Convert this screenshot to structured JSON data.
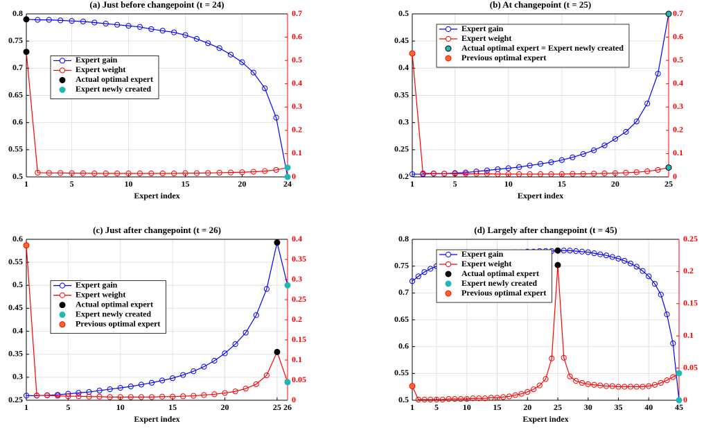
{
  "chart_data": [
    {
      "type": "line",
      "title": "(a) Just before changepoint (t = 24)",
      "xlabel": "Expert index",
      "grid": true,
      "legend": "center left",
      "x": [
        1,
        2,
        3,
        4,
        5,
        6,
        7,
        8,
        9,
        10,
        11,
        12,
        13,
        14,
        15,
        16,
        17,
        18,
        19,
        20,
        21,
        22,
        23,
        24
      ],
      "xlim": [
        1,
        24
      ],
      "xticks": [
        1,
        5,
        10,
        15,
        20,
        24
      ],
      "ylim": [
        0.5,
        0.8
      ],
      "yticks": [
        0.5,
        0.55,
        0.6,
        0.65,
        0.7,
        0.75,
        0.8
      ],
      "y2lim": [
        0,
        0.7
      ],
      "y2ticks": [
        0,
        0.1,
        0.2,
        0.3,
        0.4,
        0.5,
        0.6,
        0.7
      ],
      "series": [
        {
          "name": "Expert gain",
          "color": "#0000ff",
          "values": [
            0.79,
            0.789,
            0.789,
            0.788,
            0.787,
            0.786,
            0.784,
            0.782,
            0.78,
            0.778,
            0.776,
            0.772,
            0.769,
            0.766,
            0.761,
            0.754,
            0.746,
            0.737,
            0.725,
            0.711,
            0.692,
            0.663,
            0.609,
            0.5
          ]
        },
        {
          "name": "Expert weight",
          "color": "#ff0000",
          "axis": "y2",
          "values": [
            0.537,
            0.018,
            0.017,
            0.017,
            0.016,
            0.016,
            0.015,
            0.015,
            0.015,
            0.015,
            0.015,
            0.015,
            0.015,
            0.015,
            0.016,
            0.016,
            0.017,
            0.018,
            0.019,
            0.02,
            0.022,
            0.025,
            0.03,
            0.04
          ]
        }
      ],
      "markers": [
        {
          "name": "Actual optimal expert",
          "color": "#000000",
          "x": [
            1,
            1
          ],
          "values": [
            0.79,
            0.537
          ],
          "axes": [
            "y",
            "y2"
          ]
        },
        {
          "name": "Expert newly created",
          "color": "#1fb8b8",
          "x": [
            24,
            24
          ],
          "values": [
            0.5,
            0.04
          ],
          "axes": [
            "y",
            "y2"
          ]
        }
      ]
    },
    {
      "type": "line",
      "title": "(b) At changepoint (t = 25)",
      "xlabel": "Expert index",
      "grid": true,
      "legend": "upper left",
      "x": [
        1,
        2,
        3,
        4,
        5,
        6,
        7,
        8,
        9,
        10,
        11,
        12,
        13,
        14,
        15,
        16,
        17,
        18,
        19,
        20,
        21,
        22,
        23,
        24,
        25
      ],
      "xlim": [
        1,
        25
      ],
      "xticks": [
        1,
        5,
        10,
        15,
        20,
        25
      ],
      "ylim": [
        0.2,
        0.5
      ],
      "yticks": [
        0.2,
        0.25,
        0.3,
        0.35,
        0.4,
        0.45,
        0.5
      ],
      "y2lim": [
        0,
        0.7
      ],
      "y2ticks": [
        0,
        0.1,
        0.2,
        0.3,
        0.4,
        0.5,
        0.6,
        0.7
      ],
      "series": [
        {
          "name": "Expert gain",
          "color": "#0000ff",
          "values": [
            0.205,
            0.205,
            0.206,
            0.206,
            0.207,
            0.208,
            0.21,
            0.212,
            0.214,
            0.216,
            0.218,
            0.221,
            0.224,
            0.227,
            0.231,
            0.236,
            0.242,
            0.249,
            0.258,
            0.27,
            0.283,
            0.302,
            0.335,
            0.39,
            0.5
          ]
        },
        {
          "name": "Expert weight",
          "color": "#ff0000",
          "axis": "y2",
          "values": [
            0.53,
            0.015,
            0.015,
            0.014,
            0.014,
            0.013,
            0.013,
            0.013,
            0.012,
            0.012,
            0.012,
            0.012,
            0.012,
            0.012,
            0.012,
            0.013,
            0.013,
            0.014,
            0.015,
            0.016,
            0.018,
            0.02,
            0.024,
            0.03,
            0.04
          ]
        }
      ],
      "markers": [
        {
          "name": "Actual optimal expert = Expert newly created",
          "color": "#1fb8b8",
          "edgecolor": "#000000",
          "x": [
            25,
            25
          ],
          "values": [
            0.5,
            0.04
          ],
          "axes": [
            "y",
            "y2"
          ]
        },
        {
          "name": "Previous optimal expert",
          "color": "#ff6a2a",
          "edgecolor": "#ff0000",
          "x": [
            1
          ],
          "values": [
            0.53
          ],
          "axes": [
            "y2"
          ]
        }
      ]
    },
    {
      "type": "line",
      "title": "(c) Just after changepoint (t = 26)",
      "xlabel": "Expert index",
      "grid": true,
      "legend": "center left",
      "x": [
        1,
        2,
        3,
        4,
        5,
        6,
        7,
        8,
        9,
        10,
        11,
        12,
        13,
        14,
        15,
        16,
        17,
        18,
        19,
        20,
        21,
        22,
        23,
        24,
        25,
        26
      ],
      "xlim": [
        1,
        26
      ],
      "xticks": [
        1,
        5,
        10,
        15,
        20,
        25,
        26
      ],
      "ylim": [
        0.25,
        0.6
      ],
      "yticks": [
        0.25,
        0.3,
        0.35,
        0.4,
        0.45,
        0.5,
        0.55,
        0.6
      ],
      "y2lim": [
        0,
        0.4
      ],
      "y2ticks": [
        0,
        0.05,
        0.1,
        0.15,
        0.2,
        0.25,
        0.3,
        0.35,
        0.4
      ],
      "series": [
        {
          "name": "Expert gain",
          "color": "#0000ff",
          "values": [
            0.26,
            0.26,
            0.261,
            0.262,
            0.264,
            0.266,
            0.268,
            0.271,
            0.274,
            0.277,
            0.28,
            0.284,
            0.288,
            0.293,
            0.298,
            0.305,
            0.313,
            0.323,
            0.336,
            0.352,
            0.372,
            0.397,
            0.435,
            0.492,
            0.593,
            0.5
          ]
        },
        {
          "name": "Expert weight",
          "color": "#ff0000",
          "axis": "y2",
          "values": [
            0.385,
            0.012,
            0.012,
            0.011,
            0.01,
            0.01,
            0.009,
            0.009,
            0.008,
            0.008,
            0.008,
            0.008,
            0.008,
            0.009,
            0.009,
            0.01,
            0.011,
            0.013,
            0.015,
            0.018,
            0.022,
            0.029,
            0.04,
            0.062,
            0.12,
            0.045
          ]
        }
      ],
      "markers": [
        {
          "name": "Actual optimal expert",
          "color": "#000000",
          "x": [
            25,
            25
          ],
          "values": [
            0.593,
            0.12
          ],
          "axes": [
            "y",
            "y2"
          ]
        },
        {
          "name": "Expert newly created",
          "color": "#1fb8b8",
          "x": [
            26,
            26
          ],
          "values": [
            0.5,
            0.045
          ],
          "axes": [
            "y",
            "y2"
          ]
        },
        {
          "name": "Previous optimal expert",
          "color": "#ff6a2a",
          "edgecolor": "#ff0000",
          "x": [
            1
          ],
          "values": [
            0.385
          ],
          "axes": [
            "y2"
          ]
        }
      ]
    },
    {
      "type": "line",
      "title": "(d) Largely after changepoint (t = 45)",
      "xlabel": "Expert index",
      "grid": true,
      "legend": "upper left",
      "x": [
        1,
        2,
        3,
        4,
        5,
        6,
        7,
        8,
        9,
        10,
        11,
        12,
        13,
        14,
        15,
        16,
        17,
        18,
        19,
        20,
        21,
        22,
        23,
        24,
        25,
        26,
        27,
        28,
        29,
        30,
        31,
        32,
        33,
        34,
        35,
        36,
        37,
        38,
        39,
        40,
        41,
        42,
        43,
        44,
        45
      ],
      "xlim": [
        1,
        45
      ],
      "xticks": [
        1,
        5,
        10,
        15,
        20,
        25,
        30,
        35,
        40,
        45
      ],
      "ylim": [
        0.5,
        0.8
      ],
      "yticks": [
        0.5,
        0.55,
        0.6,
        0.65,
        0.7,
        0.75,
        0.8
      ],
      "y2lim": [
        0,
        0.25
      ],
      "y2ticks": [
        0,
        0.05,
        0.1,
        0.15,
        0.2,
        0.25
      ],
      "series": [
        {
          "name": "Expert gain",
          "color": "#0000ff",
          "values": [
            0.722,
            0.731,
            0.739,
            0.745,
            0.75,
            0.754,
            0.758,
            0.761,
            0.764,
            0.766,
            0.768,
            0.77,
            0.771,
            0.772,
            0.773,
            0.774,
            0.775,
            0.776,
            0.776,
            0.777,
            0.777,
            0.778,
            0.778,
            0.778,
            0.779,
            0.779,
            0.779,
            0.778,
            0.777,
            0.776,
            0.774,
            0.772,
            0.77,
            0.767,
            0.764,
            0.76,
            0.755,
            0.749,
            0.741,
            0.731,
            0.717,
            0.697,
            0.66,
            0.606,
            0.5
          ]
        },
        {
          "name": "Expert weight",
          "color": "#ff0000",
          "axis": "y2",
          "values": [
            0.022,
            0.001,
            0.001,
            0.001,
            0.001,
            0.001,
            0.002,
            0.002,
            0.002,
            0.002,
            0.003,
            0.003,
            0.003,
            0.004,
            0.004,
            0.005,
            0.006,
            0.008,
            0.01,
            0.013,
            0.017,
            0.023,
            0.033,
            0.065,
            0.21,
            0.066,
            0.037,
            0.03,
            0.027,
            0.025,
            0.024,
            0.023,
            0.022,
            0.022,
            0.021,
            0.021,
            0.021,
            0.021,
            0.021,
            0.022,
            0.024,
            0.027,
            0.031,
            0.036,
            0.042
          ]
        }
      ],
      "markers": [
        {
          "name": "Actual optimal expert",
          "color": "#000000",
          "x": [
            25,
            25
          ],
          "values": [
            0.779,
            0.21
          ],
          "axes": [
            "y",
            "y2"
          ]
        },
        {
          "name": "Expert newly created",
          "color": "#1fb8b8",
          "x": [
            45,
            45
          ],
          "values": [
            0.5,
            0.042
          ],
          "axes": [
            "y",
            "y2"
          ]
        },
        {
          "name": "Previous optimal expert",
          "color": "#ff6a2a",
          "edgecolor": "#ff0000",
          "x": [
            1
          ],
          "values": [
            0.022
          ],
          "axes": [
            "y2"
          ]
        }
      ]
    }
  ]
}
